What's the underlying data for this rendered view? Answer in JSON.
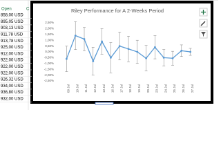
{
  "spreadsheet": {
    "headers": [
      "Open",
      "C"
    ],
    "rows": [
      "858,00 USD",
      "895,05 USD",
      "903,13 USD",
      "911,78 USD",
      "913,78 USD",
      "925,00 USD",
      "912,00 USD",
      "922,00 USD",
      "922,00 USD",
      "922,00 USD",
      "926,32 USD",
      "934,00 USD",
      "936,80 USD",
      "932,00 USD"
    ]
  },
  "chart_data": {
    "type": "line",
    "title": "Riley Performance for A 2-Weeks Period",
    "categories": [
      "09 Jul",
      "10 Jul",
      "11 Jul",
      "12 Jul",
      "13 Jul",
      "16 Jul",
      "17 Jul",
      "18 Jul",
      "19 Jul",
      "20 Jul",
      "23 Jul",
      "24 Jul",
      "25 Jul",
      "26 Jul",
      "27 Jul"
    ],
    "series": [
      {
        "name": "Riley",
        "color": "#5b9bd5",
        "values": [
          -0.6,
          1.4,
          1.1,
          -0.8,
          0.9,
          -0.5,
          0.5,
          0.25,
          0,
          -0.55,
          0.4,
          -0.5,
          -0.55,
          0.1,
          0
        ],
        "errors": [
          1.1,
          1.2,
          1.0,
          1.2,
          1.1,
          1.3,
          1.2,
          1.1,
          1.0,
          1.1,
          1.0,
          0.7,
          0.6,
          0.5,
          0.3
        ]
      }
    ],
    "ylim": [
      -2.5,
      2.5
    ],
    "yticks": [
      {
        "value": 2.5,
        "label": "2,50%"
      },
      {
        "value": 2,
        "label": "2,00%"
      },
      {
        "value": 1.5,
        "label": "1,50%"
      },
      {
        "value": 1,
        "label": "1,00%"
      },
      {
        "value": 0.5,
        "label": "0,50%"
      },
      {
        "value": 0,
        "label": "0,00%"
      },
      {
        "value": -0.5,
        "label": "-0,50%"
      },
      {
        "value": -1,
        "label": "-1,00%"
      },
      {
        "value": -1.5,
        "label": "-1,50%"
      },
      {
        "value": -2,
        "label": "-2,00%"
      },
      {
        "value": -2.5,
        "label": "-2,50%"
      }
    ],
    "grid": false
  }
}
